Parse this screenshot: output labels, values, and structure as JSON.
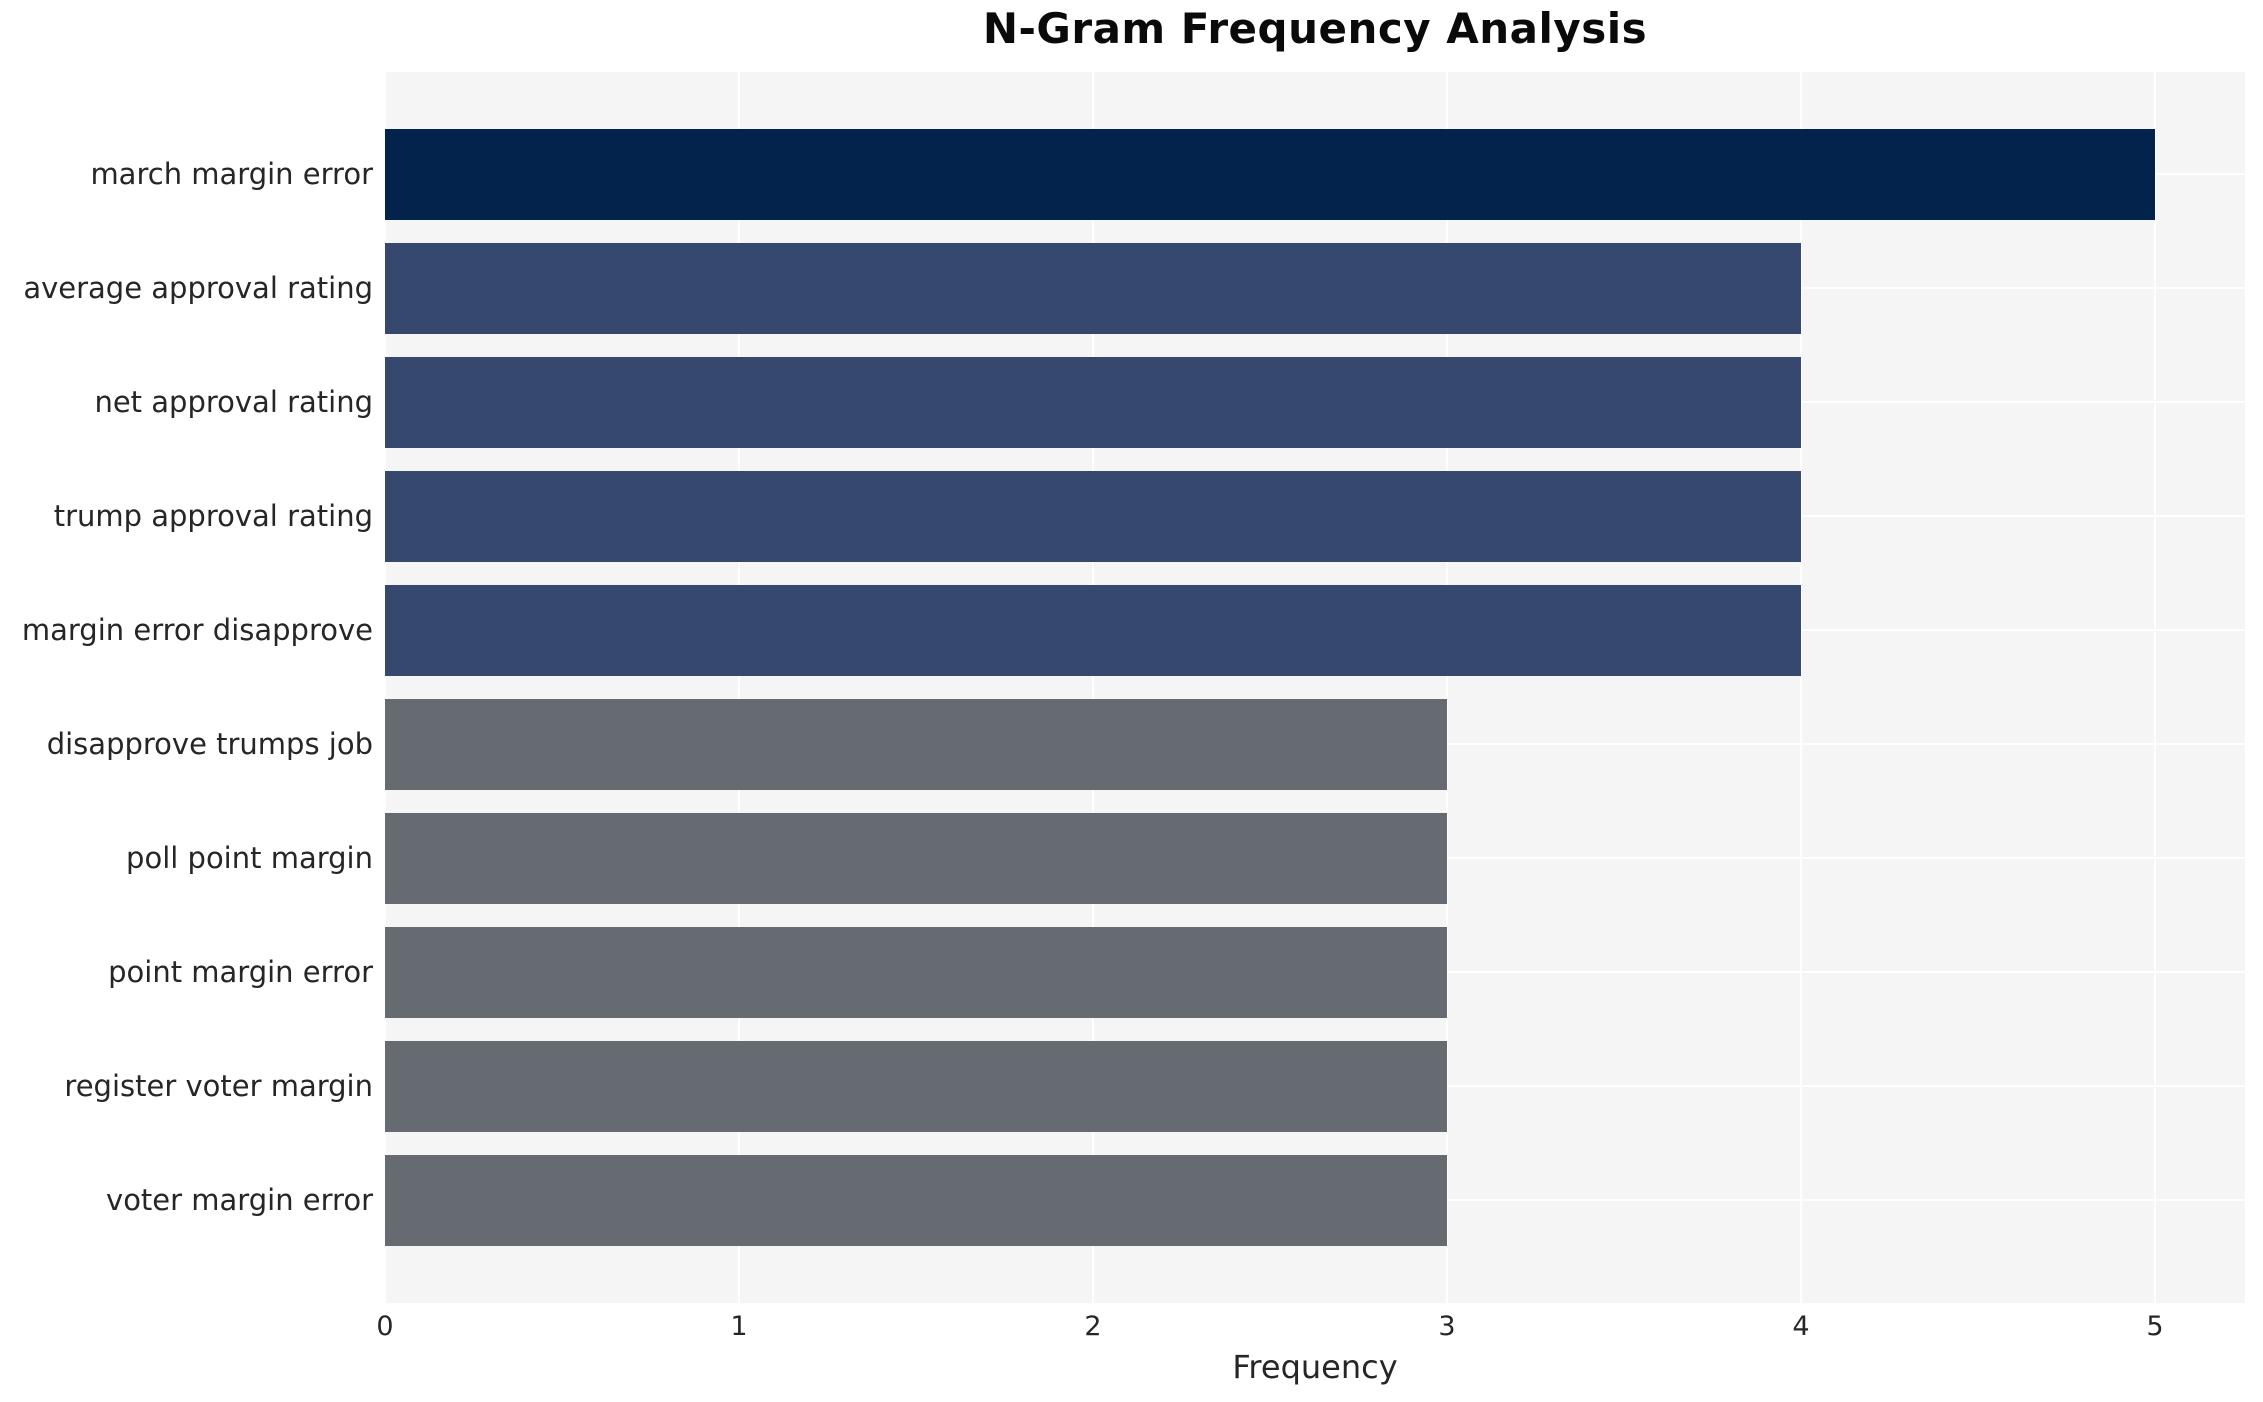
{
  "chart_data": {
    "type": "bar",
    "orientation": "horizontal",
    "title": "N-Gram Frequency Analysis",
    "xlabel": "Frequency",
    "ylabel": "",
    "categories": [
      "march margin error",
      "average approval rating",
      "net approval rating",
      "trump approval rating",
      "margin error disapprove",
      "disapprove trumps job",
      "poll point margin",
      "point margin error",
      "register voter margin",
      "voter margin error"
    ],
    "values": [
      5,
      4,
      4,
      4,
      4,
      3,
      3,
      3,
      3,
      3
    ],
    "bar_colors": [
      "#03224C",
      "#36486E",
      "#36486E",
      "#36486E",
      "#36486E",
      "#666A71",
      "#666A71",
      "#666A71",
      "#666A71",
      "#666A71"
    ],
    "xticks": [
      "0",
      "1",
      "2",
      "3",
      "4",
      "5"
    ],
    "xlim": [
      0,
      5.25
    ],
    "grid": true,
    "legend_position": "none",
    "plot_background": "#F5F5F6",
    "gridline_color": "#FFFFFF",
    "text_color": "#262626",
    "title_color": "#0A0A0A"
  }
}
